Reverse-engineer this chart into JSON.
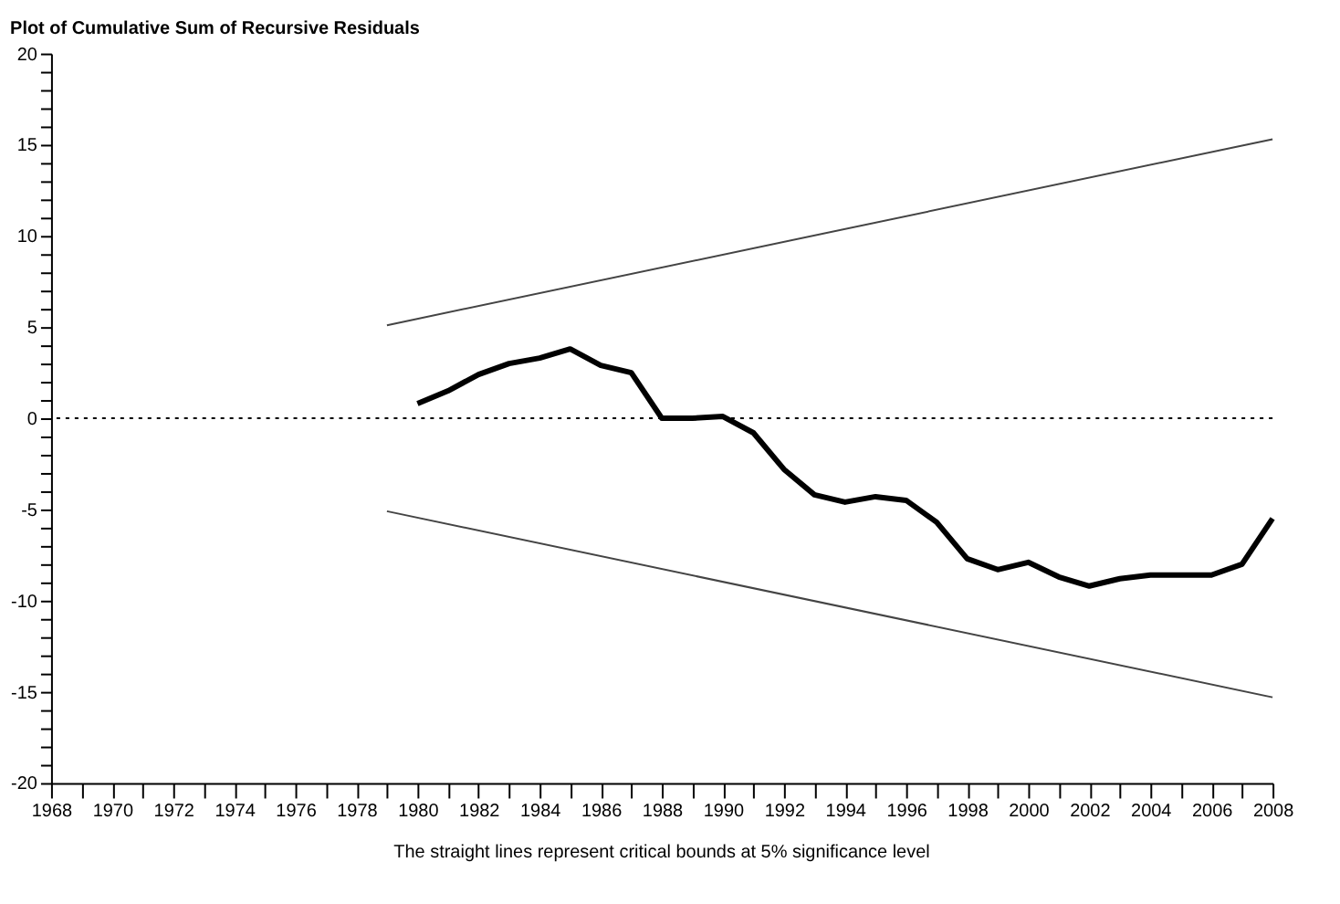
{
  "chart_data": {
    "type": "line",
    "title": "Plot of Cumulative Sum of Recursive Residuals",
    "annotations": [
      "The straight lines represent critical bounds at 5% significance level"
    ],
    "series": [
      {
        "color": "#000000",
        "x": [
          1980,
          1981,
          1982,
          1983,
          1984,
          1985,
          1986,
          1987,
          1988,
          1989,
          1990,
          1991,
          1992,
          1993,
          1994,
          1995,
          1996,
          1997,
          1998,
          1999,
          2000,
          2001,
          2002,
          2003,
          2004,
          2005,
          2006,
          2007,
          2008
        ],
        "values": [
          0.8,
          1.5,
          2.4,
          3.0,
          3.3,
          3.8,
          2.9,
          2.5,
          0,
          0,
          0.1,
          -0.8,
          -2.8,
          -4.2,
          -4.6,
          -4.3,
          -4.5,
          -5.7,
          -7.7,
          -8.3,
          -7.9,
          -8.7,
          -9.2,
          -8.8,
          -8.6,
          -8.6,
          -8.6,
          -8.0,
          -5.5
        ]
      },
      {
        "color": "#444444",
        "x": [
          1979,
          2008
        ],
        "values": [
          5.1,
          15.3
        ]
      },
      {
        "color": "#444444",
        "x": [
          1979,
          2008
        ],
        "values": [
          -5.1,
          -15.3
        ]
      }
    ],
    "ref_lines": [
      {
        "axis": "y",
        "value": 0,
        "color": "#000000",
        "line_style": "dotted"
      }
    ],
    "xlim": [
      1968,
      2008
    ],
    "xticks": [
      1968,
      {
        "value": 1969,
        "label": null
      },
      1970,
      {
        "value": 1971,
        "label": null
      },
      1972,
      {
        "value": 1973,
        "label": null
      },
      1974,
      {
        "value": 1975,
        "label": null
      },
      1976,
      {
        "value": 1977,
        "label": null
      },
      1978,
      {
        "value": 1979,
        "label": null
      },
      1980,
      {
        "value": 1981,
        "label": null
      },
      1982,
      {
        "value": 1983,
        "label": null
      },
      1984,
      {
        "value": 1985,
        "label": null
      },
      1986,
      {
        "value": 1987,
        "label": null
      },
      1988,
      {
        "value": 1989,
        "label": null
      },
      1990,
      {
        "value": 1991,
        "label": null
      },
      1992,
      {
        "value": 1993,
        "label": null
      },
      1994,
      {
        "value": 1995,
        "label": null
      },
      1996,
      {
        "value": 1997,
        "label": null
      },
      1998,
      {
        "value": 1999,
        "label": null
      },
      2000,
      {
        "value": 2001,
        "label": null
      },
      2002,
      {
        "value": 2003,
        "label": null
      },
      2004,
      {
        "value": 2005,
        "label": null
      },
      2006,
      {
        "value": 2007,
        "label": null
      },
      2008
    ],
    "ylim": [
      -20,
      20
    ],
    "yticks": [
      -20,
      {
        "value": -19,
        "label": null
      },
      {
        "value": -18,
        "label": null
      },
      {
        "value": -17,
        "label": null
      },
      {
        "value": -16,
        "label": null
      },
      -15,
      {
        "value": -14,
        "label": null
      },
      {
        "value": -13,
        "label": null
      },
      {
        "value": -12,
        "label": null
      },
      {
        "value": -11,
        "label": null
      },
      -10,
      {
        "value": -9,
        "label": null
      },
      {
        "value": -8,
        "label": null
      },
      {
        "value": -7,
        "label": null
      },
      {
        "value": -6,
        "label": null
      },
      -5,
      {
        "value": -4,
        "label": null
      },
      {
        "value": -3,
        "label": null
      },
      {
        "value": -2,
        "label": null
      },
      {
        "value": -1,
        "label": null
      },
      0,
      {
        "value": 1,
        "label": null
      },
      {
        "value": 2,
        "label": null
      },
      {
        "value": 3,
        "label": null
      },
      {
        "value": 4,
        "label": null
      },
      5,
      {
        "value": 6,
        "label": null
      },
      {
        "value": 7,
        "label": null
      },
      {
        "value": 8,
        "label": null
      },
      {
        "value": 9,
        "label": null
      },
      10,
      {
        "value": 11,
        "label": null
      },
      {
        "value": 12,
        "label": null
      },
      {
        "value": 13,
        "label": null
      },
      {
        "value": 14,
        "label": null
      },
      15,
      {
        "value": 16,
        "label": null
      },
      {
        "value": 17,
        "label": null
      },
      {
        "value": 18,
        "label": null
      },
      {
        "value": 19,
        "label": null
      },
      20
    ],
    "grid": false,
    "marker": "none",
    "line_style": "solid"
  }
}
